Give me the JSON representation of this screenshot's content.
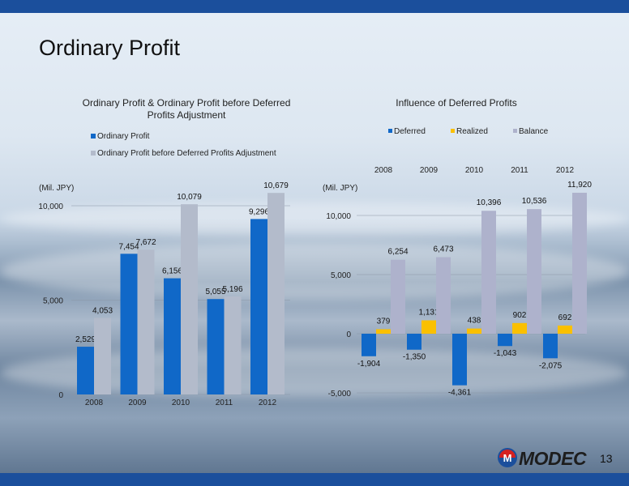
{
  "page": {
    "title": "Ordinary Profit",
    "page_number": "13",
    "logo_text": "MODEC"
  },
  "colors": {
    "bar_blue": "#1068c8",
    "bar_gray": "#b3bbcb",
    "bar_yellow": "#fac000",
    "bar_lavender": "#aeb2cc",
    "band_blue": "#1b4f9c"
  },
  "chart_data": [
    {
      "id": "left",
      "type": "bar",
      "title": "Ordinary Profit & Ordinary Profit before Deferred Profits Adjustment",
      "title_lines": [
        "Ordinary Profit & Ordinary Profit before Deferred",
        "Profits Adjustment"
      ],
      "unit_label": "(Mil. JPY)",
      "categories": [
        "2008",
        "2009",
        "2010",
        "2011",
        "2012"
      ],
      "series": [
        {
          "name": "Ordinary Profit",
          "color": "#1068c8",
          "values": [
            2529,
            7454,
            6156,
            5055,
            9296
          ],
          "labels": [
            "2,529",
            "7,454",
            "6,156",
            "5,055",
            "9,296"
          ]
        },
        {
          "name": "Ordinary Profit before Deferred Profits Adjustment",
          "color": "#b3bbcb",
          "values": [
            4053,
            7672,
            10079,
            5196,
            10679
          ],
          "labels": [
            "4,053",
            "7,672",
            "10,079",
            "5,196",
            "10,679"
          ]
        }
      ],
      "ylim": [
        0,
        10000
      ],
      "yticks": [
        0,
        5000,
        10000
      ],
      "ytick_labels": [
        "0",
        "5,000",
        "10,000"
      ],
      "legend_position": "top-left"
    },
    {
      "id": "right",
      "type": "bar",
      "title": "Influence of Deferred Profits",
      "unit_label": "(Mil. JPY)",
      "categories": [
        "2008",
        "2009",
        "2010",
        "2011",
        "2012"
      ],
      "series": [
        {
          "name": "Deferred",
          "color": "#1068c8",
          "values": [
            -1904,
            -1350,
            -4361,
            -1043,
            -2075
          ],
          "labels": [
            "-1,904",
            "-1,350",
            "-4,361",
            "-1,043",
            "-2,075"
          ]
        },
        {
          "name": "Realized",
          "color": "#fac000",
          "values": [
            379,
            1131,
            438,
            902,
            692
          ],
          "labels": [
            "379",
            "1,131",
            "438",
            "902",
            "692"
          ]
        },
        {
          "name": "Balance",
          "color": "#aeb2cc",
          "values": [
            6254,
            6473,
            10396,
            10536,
            11920
          ],
          "labels": [
            "6,254",
            "6,473",
            "10,396",
            "10,536",
            "11,920"
          ]
        }
      ],
      "ylim": [
        -5000,
        10000
      ],
      "yticks": [
        -5000,
        0,
        5000,
        10000
      ],
      "ytick_labels": [
        "-5,000",
        "0",
        "5,000",
        "10,000"
      ],
      "x_labels_position": "top",
      "legend_position": "top"
    }
  ]
}
